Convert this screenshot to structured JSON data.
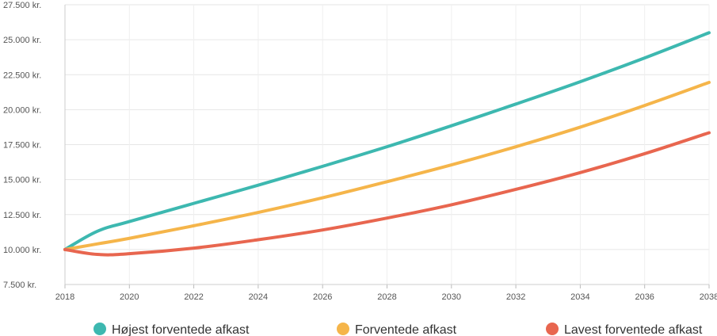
{
  "chart_data": {
    "type": "line",
    "title": "",
    "xlabel": "",
    "ylabel": "",
    "x": [
      2018,
      2019,
      2020,
      2022,
      2024,
      2026,
      2028,
      2030,
      2032,
      2034,
      2036,
      2038
    ],
    "xlim": [
      2018,
      2038
    ],
    "ylim": [
      7500,
      27500
    ],
    "x_ticks": [
      2018,
      2020,
      2022,
      2024,
      2026,
      2028,
      2030,
      2032,
      2034,
      2036,
      2038
    ],
    "x_tick_labels": [
      "2018",
      "2020",
      "2022",
      "2024",
      "2026",
      "2028",
      "2030",
      "2032",
      "2034",
      "2036",
      "2038"
    ],
    "y_ticks": [
      7500,
      10000,
      12500,
      15000,
      17500,
      20000,
      22500,
      25000,
      27500
    ],
    "y_tick_labels": [
      "7.500 kr.",
      "10.000 kr.",
      "12.500 kr.",
      "15.000 kr.",
      "17.500 kr.",
      "20.000 kr.",
      "22.500 kr.",
      "25.000 kr.",
      "27.500 kr."
    ],
    "grid": true,
    "legend": "bottom",
    "series": [
      {
        "name": "Højest forventede afkast",
        "color": "#3db8b0",
        "values": [
          10000,
          11300,
          12000,
          13300,
          14600,
          15950,
          17350,
          18850,
          20400,
          22000,
          23700,
          25500
        ]
      },
      {
        "name": "Forventede afkast",
        "color": "#f5b54a",
        "values": [
          10000,
          10400,
          10800,
          11700,
          12650,
          13700,
          14850,
          16050,
          17350,
          18750,
          20300,
          21950
        ]
      },
      {
        "name": "Lavest forventede afkast",
        "color": "#e8664f",
        "values": [
          10000,
          9650,
          9700,
          10100,
          10700,
          11400,
          12250,
          13200,
          14300,
          15500,
          16850,
          18350
        ]
      }
    ]
  }
}
